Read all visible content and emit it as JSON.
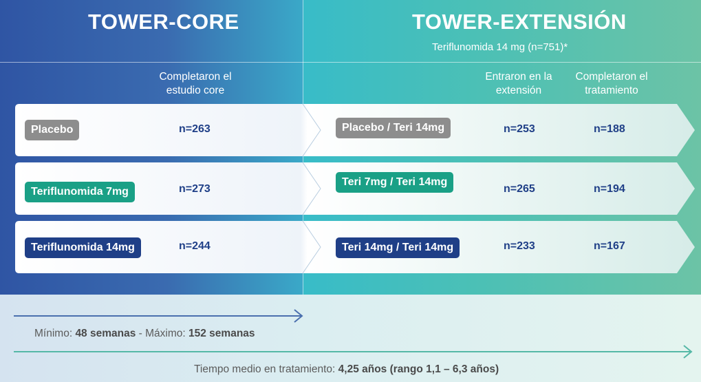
{
  "core": {
    "title": "TOWER-CORE",
    "header": "Completaron el estudio core"
  },
  "extension": {
    "title": "TOWER-EXTENSIÓN",
    "subtitle": "Teriflunomida 14 mg (n=751)*",
    "header_entered": "Entraron en la extensión",
    "header_completed": "Completaron el tratamiento"
  },
  "rows": [
    {
      "core_label": "Placebo",
      "core_n": "n=263",
      "ext_label": "Placebo / Teri 14mg",
      "ext_entered": "n=253",
      "ext_completed": "n=188",
      "color": "#8d8d8d"
    },
    {
      "core_label": "Teriflunomida 7mg",
      "core_n": "n=273",
      "ext_label": "Teri 7mg / Teri 14mg",
      "ext_entered": "n=265",
      "ext_completed": "n=194",
      "color": "#1aa086"
    },
    {
      "core_label": "Teriflunomida 14mg",
      "core_n": "n=244",
      "ext_label": "Teri 14mg / Teri 14mg",
      "ext_entered": "n=233",
      "ext_completed": "n=167",
      "color": "#1f3f87"
    }
  ],
  "timeline": {
    "core_min_label": "Mínimo:",
    "core_min_value": "48 semanas",
    "core_max_label": "- Máximo:",
    "core_max_value": "152 semanas",
    "ext_label": "Tiempo medio en tratamiento:",
    "ext_value": "4,25 años (rango 1,1 – 6,3 años)"
  },
  "colors": {
    "core_arrow": "#4a6fae",
    "ext_arrow": "#55b8a6",
    "number_text": "#1f3f87"
  }
}
